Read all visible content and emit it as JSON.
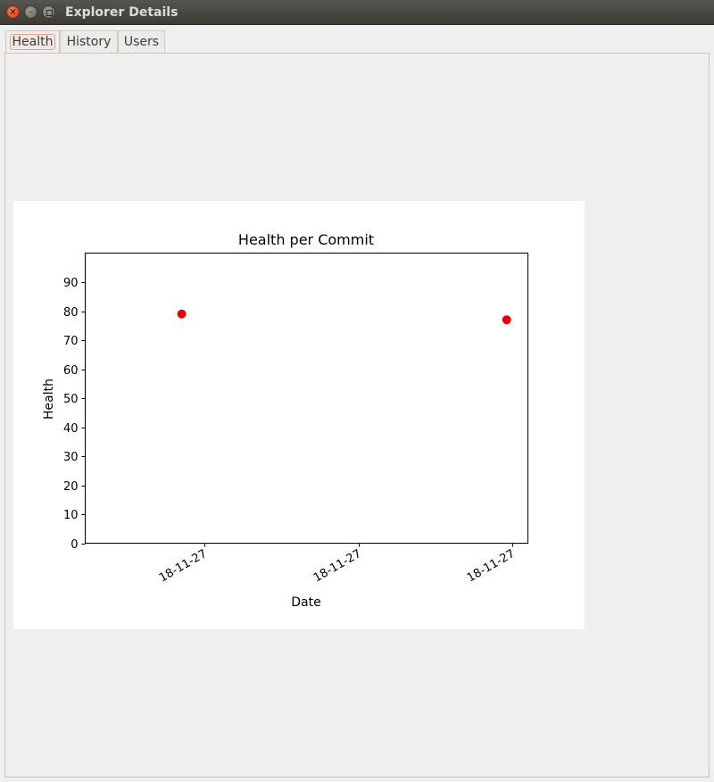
{
  "window": {
    "title": "Explorer Details",
    "close_glyph": "×",
    "min_glyph": "–"
  },
  "tabs": [
    {
      "label": "Health",
      "active": true
    },
    {
      "label": "History",
      "active": false
    },
    {
      "label": "Users",
      "active": false
    }
  ],
  "chart_data": {
    "type": "scatter",
    "title": "Health per Commit",
    "xlabel": "Date",
    "ylabel": "Health",
    "ylim": [
      0,
      100
    ],
    "yticks": [
      0,
      10,
      20,
      30,
      40,
      50,
      60,
      70,
      80,
      90
    ],
    "xticks": [
      "18-11-27",
      "18-11-27",
      "18-11-27"
    ],
    "marker_color": "#e8000b",
    "grid": false,
    "points": [
      {
        "x": "18-11-27",
        "y": 79
      },
      {
        "x": "18-11-27",
        "y": 77
      }
    ]
  }
}
